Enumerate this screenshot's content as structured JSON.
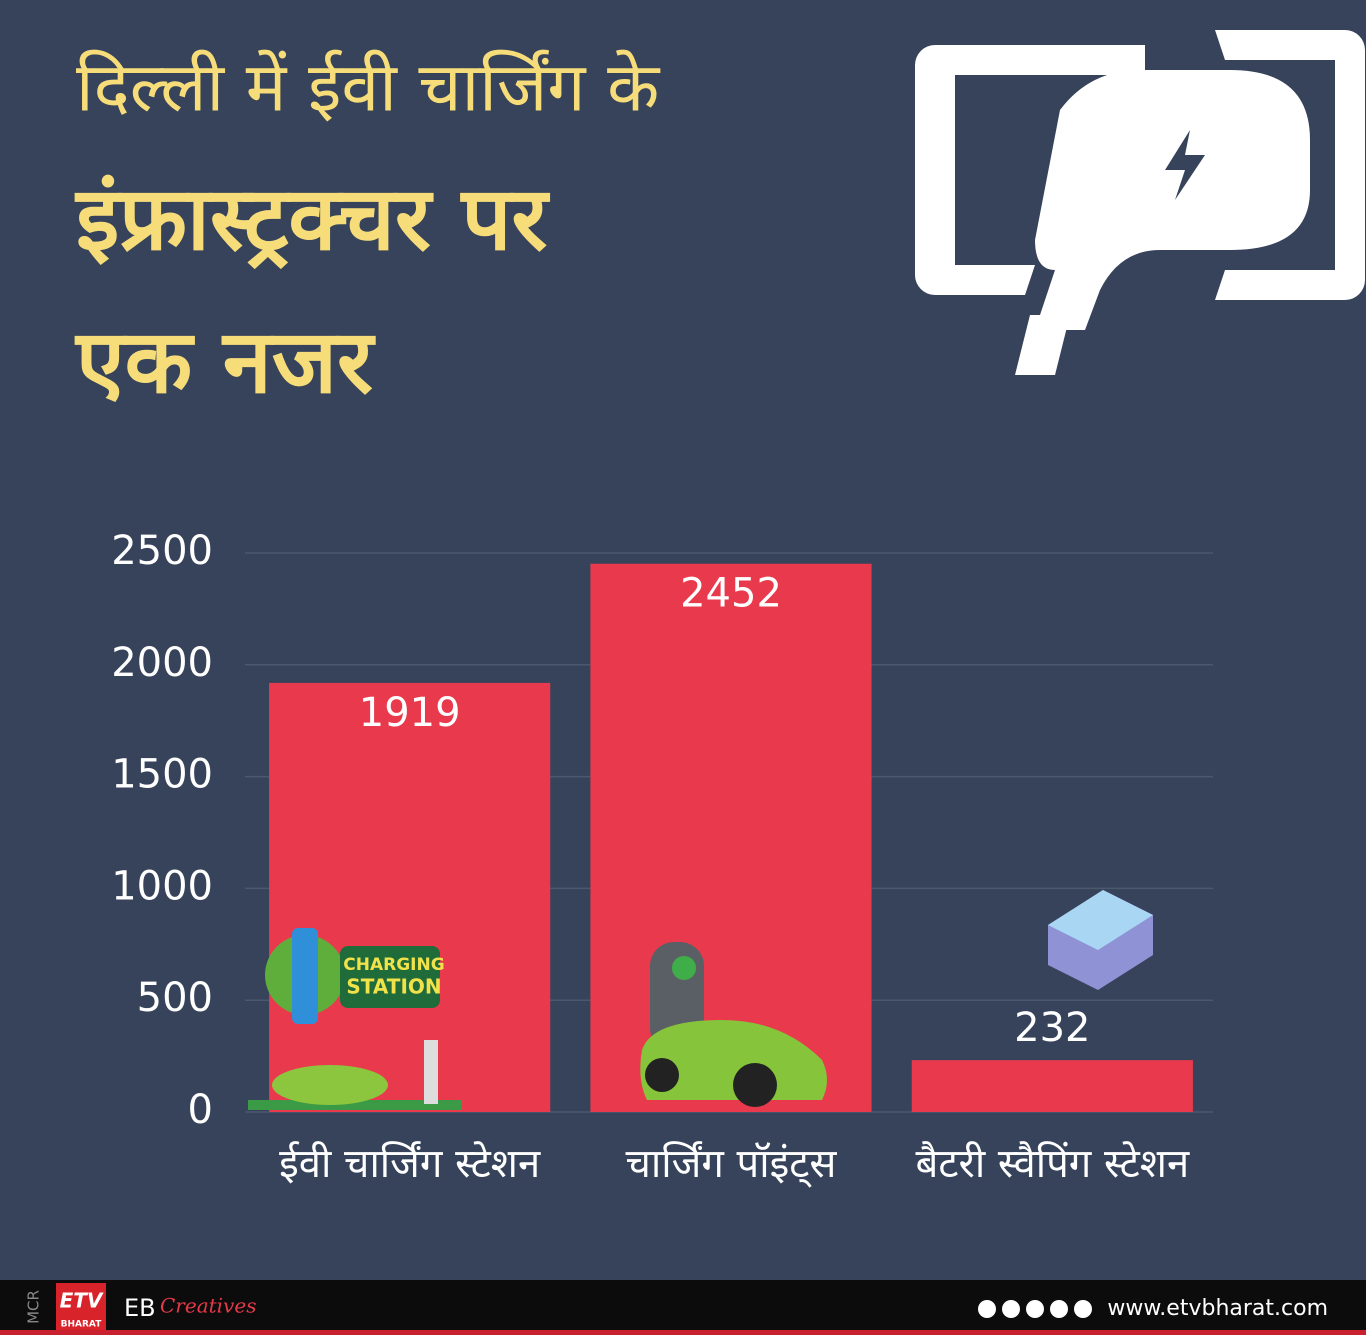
{
  "chart_data": {
    "type": "bar",
    "title": [
      "दिल्ली में ईवी चार्जिंग के",
      "इंफ्रास्ट्रक्चर पर",
      "एक नजर"
    ],
    "categories": [
      "ईवी चार्जिंग स्टेशन",
      "चार्जिंग पॉइंट्स",
      "बैटरी स्वैपिंग स्टेशन"
    ],
    "values": [
      1919,
      2452,
      232
    ],
    "color": "#e83a4c",
    "ylim": [
      0,
      2500
    ],
    "yticks": [
      0,
      500,
      1000,
      1500,
      2000,
      2500
    ],
    "grid": true,
    "illustration_text": [
      "CHARGING",
      "STATION"
    ]
  },
  "footer": {
    "side_text": "MCR",
    "logo": "ETV",
    "logo_sub": "BHARAT",
    "brand": "EB",
    "brand_script": "Creatives",
    "website": "www.etvbharat.com"
  }
}
